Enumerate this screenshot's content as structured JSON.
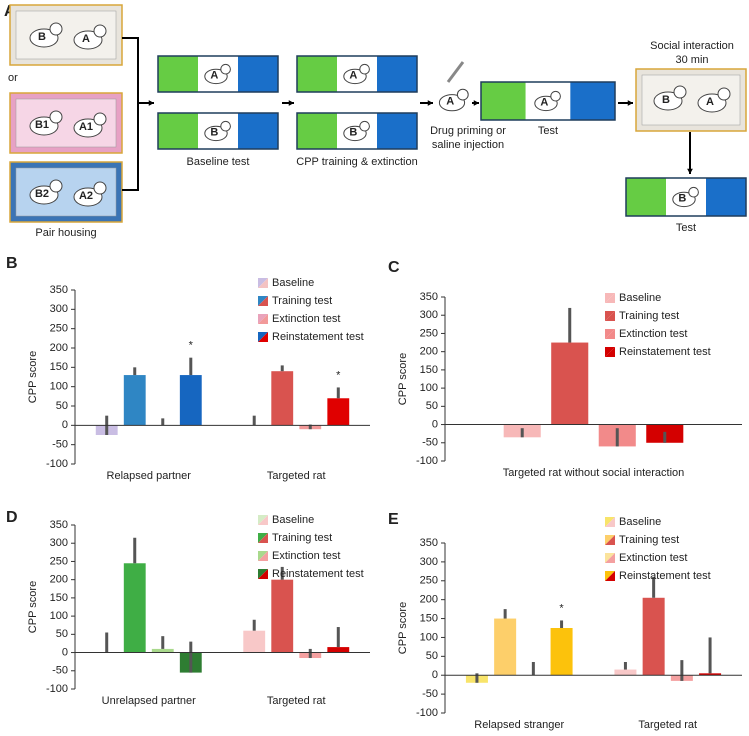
{
  "diagram": {
    "panel": "A",
    "or": "or",
    "pair_housing": "Pair housing",
    "baseline_test": "Baseline test",
    "cpp_training": "CPP training & extinction",
    "drug": [
      "Drug priming or",
      "saline injection"
    ],
    "test": "Test",
    "social": [
      "Social interaction",
      "30 min"
    ],
    "test_after_social": "Test",
    "rats": [
      "B",
      "A",
      "B1",
      "A1",
      "B2",
      "A2",
      "A",
      "B",
      "A",
      "B",
      "A",
      "A",
      "B",
      "A",
      "B"
    ]
  },
  "chart_data": [
    {
      "type": "bar",
      "panel": "B",
      "ylabel": "CPP score",
      "categories": [
        "Relapsed partner",
        "Targeted rat"
      ],
      "ylim": [
        -100,
        350
      ],
      "yticks": [
        -100,
        -50,
        0,
        50,
        100,
        150,
        200,
        250,
        300,
        350
      ],
      "series": [
        {
          "name": "Baseline",
          "colors": [
            "#c9bde3",
            "#f4c2c2"
          ],
          "values": [
            -25,
            0
          ],
          "errors": [
            50,
            25
          ]
        },
        {
          "name": "Training test",
          "colors": [
            "#2f86c4",
            "#d9534f"
          ],
          "values": [
            130,
            140
          ],
          "errors": [
            20,
            15
          ]
        },
        {
          "name": "Extinction test",
          "colors": [
            "#e9a3bb",
            "#f29a9a"
          ],
          "values": [
            0,
            -10
          ],
          "errors": [
            18,
            12
          ]
        },
        {
          "name": "Reinstatement test",
          "colors": [
            "#1666c0",
            "#e00000"
          ],
          "values": [
            130,
            70
          ],
          "errors": [
            45,
            28
          ]
        }
      ],
      "annotations": [
        {
          "text": "*",
          "series": 3,
          "category": 0
        },
        {
          "text": "*",
          "series": 3,
          "category": 1
        }
      ]
    },
    {
      "type": "bar",
      "panel": "C",
      "ylabel": "CPP score",
      "categories": [
        "Targeted rat without social interaction"
      ],
      "ylim": [
        -100,
        350
      ],
      "yticks": [
        -100,
        -50,
        0,
        50,
        100,
        150,
        200,
        250,
        300,
        350
      ],
      "series": [
        {
          "name": "Baseline",
          "colors": [
            "#f7b8b8"
          ],
          "values": [
            -35
          ],
          "errors": [
            25
          ]
        },
        {
          "name": "Training test",
          "colors": [
            "#d9534f"
          ],
          "values": [
            225
          ],
          "errors": [
            95
          ]
        },
        {
          "name": "Extinction test",
          "colors": [
            "#f28a8a"
          ],
          "values": [
            -60
          ],
          "errors": [
            50
          ]
        },
        {
          "name": "Reinstatement test",
          "colors": [
            "#d40000"
          ],
          "values": [
            -50
          ],
          "errors": [
            30
          ]
        }
      ],
      "annotations": []
    },
    {
      "type": "bar",
      "panel": "D",
      "ylabel": "CPP score",
      "categories": [
        "Unrelapsed partner",
        "Targeted rat"
      ],
      "ylim": [
        -100,
        350
      ],
      "yticks": [
        -100,
        -50,
        0,
        50,
        100,
        150,
        200,
        250,
        300,
        350
      ],
      "series": [
        {
          "name": "Baseline",
          "colors": [
            "#d5ecc6",
            "#f8c8c8"
          ],
          "values": [
            0,
            60
          ],
          "errors": [
            55,
            30
          ]
        },
        {
          "name": "Training test",
          "colors": [
            "#3fae45",
            "#d9534f"
          ],
          "values": [
            245,
            200
          ],
          "errors": [
            70,
            35
          ]
        },
        {
          "name": "Extinction test",
          "colors": [
            "#a9d98c",
            "#f4a0a0"
          ],
          "values": [
            10,
            -15
          ],
          "errors": [
            35,
            25
          ]
        },
        {
          "name": "Reinstatement test",
          "colors": [
            "#2e7d32",
            "#d40000"
          ],
          "values": [
            -55,
            15
          ],
          "errors": [
            85,
            55
          ]
        }
      ],
      "annotations": []
    },
    {
      "type": "bar",
      "panel": "E",
      "ylabel": "CPP score",
      "categories": [
        "Relapsed stranger",
        "Targeted rat"
      ],
      "ylim": [
        -100,
        350
      ],
      "yticks": [
        -100,
        -50,
        0,
        50,
        100,
        150,
        200,
        250,
        300,
        350
      ],
      "series": [
        {
          "name": "Baseline",
          "colors": [
            "#f8e46a",
            "#f8c8c8"
          ],
          "values": [
            -20,
            15
          ],
          "errors": [
            25,
            20
          ]
        },
        {
          "name": "Training test",
          "colors": [
            "#fdcf6a",
            "#d9534f"
          ],
          "values": [
            150,
            205
          ],
          "errors": [
            25,
            55
          ]
        },
        {
          "name": "Extinction test",
          "colors": [
            "#fbe39c",
            "#f4a0a0"
          ],
          "values": [
            0,
            -15
          ],
          "errors": [
            35,
            55
          ]
        },
        {
          "name": "Reinstatement test",
          "colors": [
            "#fcc20c",
            "#d40000"
          ],
          "values": [
            125,
            5
          ],
          "errors": [
            20,
            95
          ]
        }
      ],
      "annotations": [
        {
          "text": "*",
          "series": 3,
          "category": 0
        }
      ]
    }
  ]
}
